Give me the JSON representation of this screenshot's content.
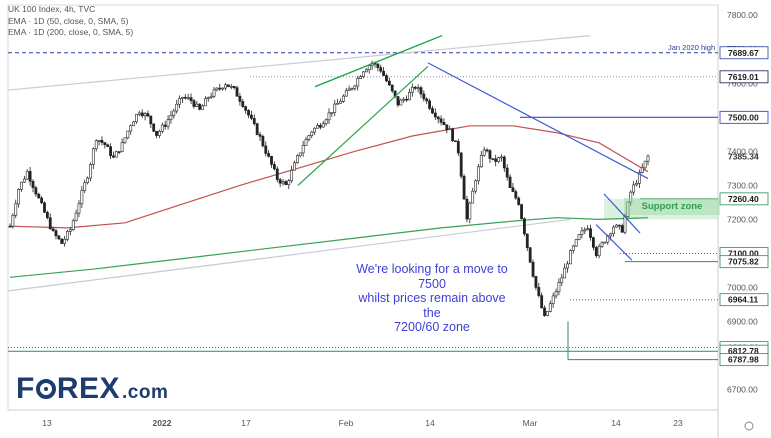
{
  "legend": {
    "line1": "UK 100 Index, 4h, TVC",
    "line2": "EMA · 1D (50, close, 0, SMA, 5)",
    "line3": "EMA · 1D (200, close, 0, SMA, 5)"
  },
  "annotation": {
    "line1": "We're looking for a move to 7500",
    "line2": "whilst prices remain above the",
    "line3": "7200/60 zone"
  },
  "support_zone_label": "Support zone",
  "jan_high_label": "Jan 2020 high",
  "logo": {
    "f": "F",
    "rest": "REX",
    "dotcom": ".com"
  },
  "colors": {
    "candle": "#222222",
    "ema50": "#c45050",
    "ema200": "#3aa055",
    "trendline_blue": "#3b5bd8",
    "trendline_green": "#26a84a",
    "channel_gray": "#c9c9d8",
    "level_blue": "#2b2bd0",
    "level_green": "#2e8b57",
    "zone_green": "#96d7a0"
  },
  "chart_data": {
    "type": "candlestick",
    "title": "UK 100 Index, 4h, TVC",
    "x_ticks": [
      "13",
      "2022",
      "17",
      "Feb",
      "14",
      "Mar",
      "14",
      "23"
    ],
    "y_ticks": [
      6700,
      6800,
      6900,
      7000,
      7100,
      7200,
      7300,
      7400,
      7500,
      7600,
      7700,
      7800
    ],
    "ylim": [
      6640,
      7830
    ],
    "price_labels": [
      {
        "value": 7689.67,
        "text": "7689.67",
        "color": "#2b3fa0"
      },
      {
        "value": 7619.01,
        "text": "7619.01",
        "color": "#1a1a4a"
      },
      {
        "value": 7500.0,
        "text": "7500.00",
        "color": "#2b2bd0"
      },
      {
        "value": 7385.34,
        "text": "7385.34",
        "color": null
      },
      {
        "value": 7260.4,
        "text": "7260.40",
        "color": "#2e8b57"
      },
      {
        "value": 7100.0,
        "text": "7100.00",
        "color": "#2e8b57"
      },
      {
        "value": 7075.82,
        "text": "7075.82",
        "color": "#2e8b57"
      },
      {
        "value": 6964.11,
        "text": "6964.11",
        "color": "#2e8b57"
      },
      {
        "value": 6823.6,
        "text": "6823.60",
        "color": "#2e8b57"
      },
      {
        "value": 6812.78,
        "text": "6812.78",
        "color": "#2e8b57"
      },
      {
        "value": 6787.98,
        "text": "6787.98",
        "color": "#2e8b57"
      }
    ],
    "close_path": [
      [
        0,
        7180
      ],
      [
        6,
        7290
      ],
      [
        12,
        7340
      ],
      [
        18,
        7280
      ],
      [
        24,
        7220
      ],
      [
        30,
        7160
      ],
      [
        36,
        7130
      ],
      [
        42,
        7170
      ],
      [
        48,
        7250
      ],
      [
        54,
        7330
      ],
      [
        60,
        7440
      ],
      [
        66,
        7420
      ],
      [
        72,
        7380
      ],
      [
        78,
        7420
      ],
      [
        84,
        7480
      ],
      [
        90,
        7520
      ],
      [
        96,
        7500
      ],
      [
        102,
        7450
      ],
      [
        108,
        7480
      ],
      [
        114,
        7520
      ],
      [
        120,
        7560
      ],
      [
        126,
        7550
      ],
      [
        132,
        7520
      ],
      [
        138,
        7560
      ],
      [
        144,
        7580
      ],
      [
        150,
        7600
      ],
      [
        156,
        7580
      ],
      [
        162,
        7540
      ],
      [
        168,
        7490
      ],
      [
        174,
        7440
      ],
      [
        180,
        7380
      ],
      [
        186,
        7320
      ],
      [
        192,
        7300
      ],
      [
        198,
        7360
      ],
      [
        204,
        7420
      ],
      [
        210,
        7460
      ],
      [
        216,
        7480
      ],
      [
        222,
        7510
      ],
      [
        228,
        7540
      ],
      [
        234,
        7570
      ],
      [
        240,
        7600
      ],
      [
        246,
        7640
      ],
      [
        252,
        7660
      ],
      [
        258,
        7640
      ],
      [
        264,
        7590
      ],
      [
        270,
        7540
      ],
      [
        276,
        7560
      ],
      [
        282,
        7590
      ],
      [
        288,
        7560
      ],
      [
        294,
        7520
      ],
      [
        300,
        7490
      ],
      [
        306,
        7460
      ],
      [
        312,
        7400
      ],
      [
        318,
        7200
      ],
      [
        324,
        7320
      ],
      [
        330,
        7410
      ],
      [
        336,
        7370
      ],
      [
        342,
        7380
      ],
      [
        348,
        7290
      ],
      [
        354,
        7250
      ],
      [
        360,
        7120
      ],
      [
        366,
        7000
      ],
      [
        372,
        6910
      ],
      [
        378,
        6970
      ],
      [
        384,
        7030
      ],
      [
        390,
        7100
      ],
      [
        396,
        7150
      ],
      [
        402,
        7180
      ],
      [
        408,
        7100
      ],
      [
        414,
        7140
      ],
      [
        420,
        7180
      ],
      [
        426,
        7170
      ],
      [
        432,
        7280
      ],
      [
        438,
        7330
      ],
      [
        444,
        7385
      ]
    ],
    "ema50_path": [
      [
        0,
        7180
      ],
      [
        40,
        7175
      ],
      [
        80,
        7190
      ],
      [
        120,
        7245
      ],
      [
        160,
        7300
      ],
      [
        200,
        7350
      ],
      [
        240,
        7400
      ],
      [
        280,
        7445
      ],
      [
        320,
        7475
      ],
      [
        350,
        7475
      ],
      [
        380,
        7455
      ],
      [
        410,
        7425
      ],
      [
        444,
        7340
      ]
    ],
    "ema200_path": [
      [
        0,
        7030
      ],
      [
        60,
        7055
      ],
      [
        120,
        7085
      ],
      [
        180,
        7115
      ],
      [
        240,
        7145
      ],
      [
        300,
        7175
      ],
      [
        350,
        7195
      ],
      [
        380,
        7205
      ],
      [
        410,
        7200
      ],
      [
        444,
        7205
      ]
    ]
  }
}
